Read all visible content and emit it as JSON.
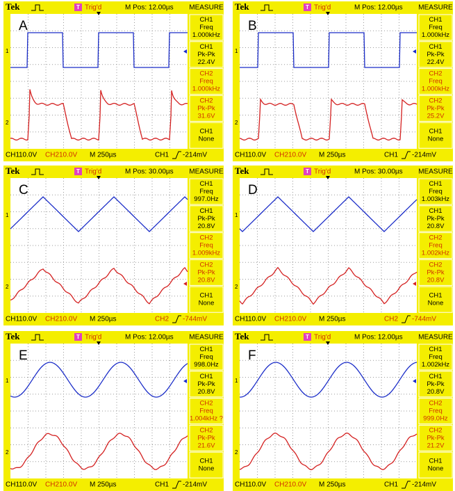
{
  "panels": [
    {
      "label": "A",
      "brand": "Tek",
      "trig_box": "T",
      "trig_state": "Trig'd",
      "mpos": "M Pos: 12.00µs",
      "measure_title": "MEASURE",
      "measurements": [
        {
          "lines": [
            "CH1",
            "Freq",
            "1.000kHz"
          ],
          "color": "#000000"
        },
        {
          "lines": [
            "CH1",
            "Pk-Pk",
            "22.4V"
          ],
          "color": "#000000"
        },
        {
          "lines": [
            "CH2",
            "Freq",
            "1.000kHz"
          ],
          "color": "#d03000"
        },
        {
          "lines": [
            "CH2",
            "Pk-Pk",
            "31.6V"
          ],
          "color": "#d03000"
        },
        {
          "lines": [
            "CH1",
            "None"
          ],
          "color": "#000000"
        }
      ],
      "ch1_marker": "1",
      "ch2_marker": "2",
      "footer": [
        {
          "text": "CH1",
          "color": "#000000"
        },
        {
          "text": "10.0V",
          "color": "#000000"
        },
        {
          "text": "CH2",
          "color": "#d03000"
        },
        {
          "text": "10.0V",
          "color": "#d03000"
        },
        {
          "text": "M 250µs",
          "color": "#000000"
        },
        {
          "text": "CH1",
          "color": "#000000"
        },
        {
          "text": "-214mV",
          "color": "#000000"
        }
      ]
    },
    {
      "label": "B",
      "brand": "Tek",
      "trig_box": "T",
      "trig_state": "Trig'd",
      "mpos": "M Pos: 12.00µs",
      "measure_title": "MEASURE",
      "measurements": [
        {
          "lines": [
            "CH1",
            "Freq",
            "1.000kHz"
          ],
          "color": "#000000"
        },
        {
          "lines": [
            "CH1",
            "Pk-Pk",
            "22.4V"
          ],
          "color": "#000000"
        },
        {
          "lines": [
            "CH2",
            "Freq",
            "1.000kHz"
          ],
          "color": "#d03000"
        },
        {
          "lines": [
            "CH2",
            "Pk-Pk",
            "25.2V"
          ],
          "color": "#d03000"
        },
        {
          "lines": [
            "CH1",
            "None"
          ],
          "color": "#000000"
        }
      ],
      "ch1_marker": "1",
      "ch2_marker": "2",
      "footer": [
        {
          "text": "CH1",
          "color": "#000000"
        },
        {
          "text": "10.0V",
          "color": "#000000"
        },
        {
          "text": "CH2",
          "color": "#d03000"
        },
        {
          "text": "10.0V",
          "color": "#d03000"
        },
        {
          "text": "M 250µs",
          "color": "#000000"
        },
        {
          "text": "CH1",
          "color": "#000000"
        },
        {
          "text": "-214mV",
          "color": "#000000"
        }
      ]
    },
    {
      "label": "C",
      "brand": "Tek",
      "trig_box": "T",
      "trig_state": "Trig'd",
      "mpos": "M Pos: 30.00µs",
      "measure_title": "MEASURE",
      "measurements": [
        {
          "lines": [
            "CH1",
            "Freq",
            "997.0Hz"
          ],
          "color": "#000000"
        },
        {
          "lines": [
            "CH1",
            "Pk-Pk",
            "20.8V"
          ],
          "color": "#000000"
        },
        {
          "lines": [
            "CH2",
            "Freq",
            "1.009kHz"
          ],
          "color": "#d03000"
        },
        {
          "lines": [
            "CH2",
            "Pk-Pk",
            "20.8V"
          ],
          "color": "#d03000"
        },
        {
          "lines": [
            "CH1",
            "None"
          ],
          "color": "#000000"
        }
      ],
      "ch1_marker": "1",
      "ch2_marker": "2",
      "footer": [
        {
          "text": "CH1",
          "color": "#000000"
        },
        {
          "text": "10.0V",
          "color": "#000000"
        },
        {
          "text": "CH2",
          "color": "#d03000"
        },
        {
          "text": "10.0V",
          "color": "#d03000"
        },
        {
          "text": "M 250µs",
          "color": "#000000"
        },
        {
          "text": "CH2",
          "color": "#d03000"
        },
        {
          "text": "-744mV",
          "color": "#d03000"
        }
      ]
    },
    {
      "label": "D",
      "brand": "Tek",
      "trig_box": "T",
      "trig_state": "Trig'd",
      "mpos": "M Pos: 30.00µs",
      "measure_title": "MEASURE",
      "measurements": [
        {
          "lines": [
            "CH1",
            "Freq",
            "1.003kHz"
          ],
          "color": "#000000"
        },
        {
          "lines": [
            "CH1",
            "Pk-Pk",
            "20.8V"
          ],
          "color": "#000000"
        },
        {
          "lines": [
            "CH2",
            "Freq",
            "1.002kHz"
          ],
          "color": "#d03000"
        },
        {
          "lines": [
            "CH2",
            "Pk-Pk",
            "20.8V"
          ],
          "color": "#d03000"
        },
        {
          "lines": [
            "CH1",
            "None"
          ],
          "color": "#000000"
        }
      ],
      "ch1_marker": "1",
      "ch2_marker": "2",
      "footer": [
        {
          "text": "CH1",
          "color": "#000000"
        },
        {
          "text": "10.0V",
          "color": "#000000"
        },
        {
          "text": "CH2",
          "color": "#d03000"
        },
        {
          "text": "10.0V",
          "color": "#d03000"
        },
        {
          "text": "M 250µs",
          "color": "#000000"
        },
        {
          "text": "CH2",
          "color": "#d03000"
        },
        {
          "text": "-744mV",
          "color": "#d03000"
        }
      ]
    },
    {
      "label": "E",
      "brand": "Tek",
      "trig_box": "T",
      "trig_state": "Trig'd",
      "mpos": "M Pos: 12.00µs",
      "measure_title": "MEASURE",
      "measurements": [
        {
          "lines": [
            "CH1",
            "Freq",
            "998.0Hz"
          ],
          "color": "#000000"
        },
        {
          "lines": [
            "CH1",
            "Pk-Pk",
            "20.8V"
          ],
          "color": "#000000"
        },
        {
          "lines": [
            "CH2",
            "Freq",
            "1.004kHz ?"
          ],
          "color": "#d03000"
        },
        {
          "lines": [
            "CH2",
            "Pk-Pk",
            "21.6V"
          ],
          "color": "#d03000"
        },
        {
          "lines": [
            "CH1",
            "None"
          ],
          "color": "#000000"
        }
      ],
      "ch1_marker": "1",
      "ch2_marker": "2",
      "footer": [
        {
          "text": "CH1",
          "color": "#000000"
        },
        {
          "text": "10.0V",
          "color": "#000000"
        },
        {
          "text": "CH2",
          "color": "#d03000"
        },
        {
          "text": "10.0V",
          "color": "#d03000"
        },
        {
          "text": "M 250µs",
          "color": "#000000"
        },
        {
          "text": "CH1",
          "color": "#000000"
        },
        {
          "text": "-214mV",
          "color": "#000000"
        }
      ]
    },
    {
      "label": "F",
      "brand": "Tek",
      "trig_box": "T",
      "trig_state": "Trig'd",
      "mpos": "M Pos: 12.00µs",
      "measure_title": "MEASURE",
      "measurements": [
        {
          "lines": [
            "CH1",
            "Freq",
            "1.002kHz"
          ],
          "color": "#000000"
        },
        {
          "lines": [
            "CH1",
            "Pk-Pk",
            "20.8V"
          ],
          "color": "#000000"
        },
        {
          "lines": [
            "CH2",
            "Freq",
            "999.0Hz"
          ],
          "color": "#d03000"
        },
        {
          "lines": [
            "CH2",
            "Pk-Pk",
            "21.2V"
          ],
          "color": "#d03000"
        },
        {
          "lines": [
            "CH1",
            "None"
          ],
          "color": "#000000"
        }
      ],
      "ch1_marker": "1",
      "ch2_marker": "2",
      "footer": [
        {
          "text": "CH1",
          "color": "#000000"
        },
        {
          "text": "10.0V",
          "color": "#000000"
        },
        {
          "text": "CH2",
          "color": "#d03000"
        },
        {
          "text": "10.0V",
          "color": "#d03000"
        },
        {
          "text": "M 250µs",
          "color": "#000000"
        },
        {
          "text": "CH1",
          "color": "#000000"
        },
        {
          "text": "-214mV",
          "color": "#000000"
        }
      ]
    }
  ]
}
